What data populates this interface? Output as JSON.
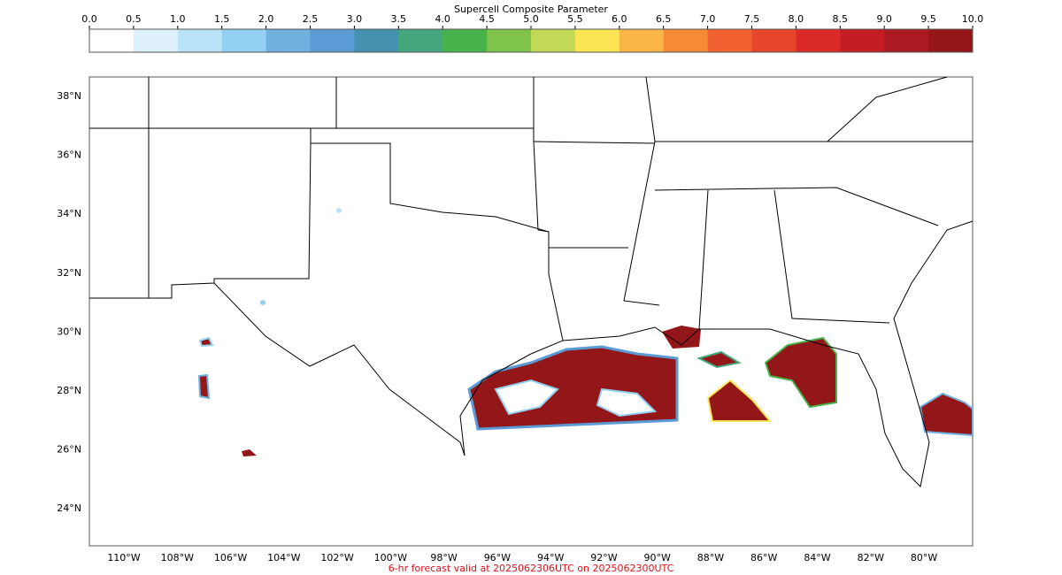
{
  "colorbar": {
    "title": "Supercell Composite Parameter",
    "lim": [
      0,
      10
    ],
    "ticks": [
      {
        "value": 0,
        "label": "0.0"
      },
      {
        "value": 0.5,
        "label": "0.5"
      },
      {
        "value": 1,
        "label": "1.0"
      },
      {
        "value": 1.5,
        "label": "1.5"
      },
      {
        "value": 2,
        "label": "2.0"
      },
      {
        "value": 2.5,
        "label": "2.5"
      },
      {
        "value": 3,
        "label": "3.0"
      },
      {
        "value": 3.5,
        "label": "3.5"
      },
      {
        "value": 4,
        "label": "4.0"
      },
      {
        "value": 4.5,
        "label": "4.5"
      },
      {
        "value": 5,
        "label": "5.0"
      },
      {
        "value": 5.5,
        "label": "5.5"
      },
      {
        "value": 6,
        "label": "6.0"
      },
      {
        "value": 6.5,
        "label": "6.5"
      },
      {
        "value": 7,
        "label": "7.0"
      },
      {
        "value": 7.5,
        "label": "7.5"
      },
      {
        "value": 8,
        "label": "8.0"
      },
      {
        "value": 8.5,
        "label": "8.5"
      },
      {
        "value": 9,
        "label": "9.0"
      },
      {
        "value": 9.5,
        "label": "9.5"
      },
      {
        "value": 10,
        "label": "10.0"
      }
    ],
    "colors": [
      "#ffffff",
      "#ddf0fb",
      "#b9e3f7",
      "#94d0f2",
      "#6fb2e0",
      "#5b9bd5",
      "#4591b0",
      "#45a57c",
      "#48b24d",
      "#80c34a",
      "#c1d957",
      "#fce554",
      "#f9b546",
      "#f68b36",
      "#f26130",
      "#e8462a",
      "#db2b28",
      "#c41d24",
      "#ab1a22",
      "#931619"
    ]
  },
  "map": {
    "lat_labels": [
      "38°N",
      "36°N",
      "34°N",
      "32°N",
      "30°N",
      "28°N",
      "26°N",
      "24°N"
    ],
    "lon_labels": [
      "110°W",
      "108°W",
      "106°W",
      "104°W",
      "102°W",
      "100°W",
      "98°W",
      "96°W",
      "94°W",
      "92°W",
      "90°W",
      "88°W",
      "86°W",
      "84°W",
      "82°W",
      "80°W"
    ]
  },
  "footer": "6-hr forecast valid at 2025062306UTC on 2025062300UTC"
}
